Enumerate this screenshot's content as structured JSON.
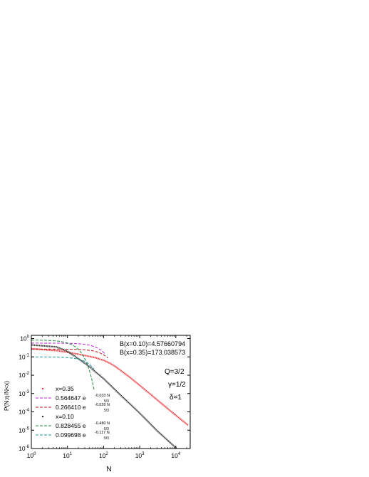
{
  "chart_data": {
    "type": "line",
    "xscale": "log",
    "yscale": "log",
    "xlim": [
      1,
      25000
    ],
    "ylim": [
      1e-06,
      1.5
    ],
    "xlabel": "N",
    "ylabel": "P(N;η/N<x)",
    "xticks": [
      {
        "value": 1,
        "base": "10",
        "exp": "0"
      },
      {
        "value": 10,
        "base": "10",
        "exp": "1"
      },
      {
        "value": 100,
        "base": "10",
        "exp": "2"
      },
      {
        "value": 1000,
        "base": "10",
        "exp": "3"
      },
      {
        "value": 10000,
        "base": "10",
        "exp": "4"
      }
    ],
    "yticks": [
      {
        "value": 1,
        "base": "10",
        "exp": "0"
      },
      {
        "value": 0.1,
        "base": "10",
        "exp": "-1"
      },
      {
        "value": 0.01,
        "base": "10",
        "exp": "-2"
      },
      {
        "value": 0.001,
        "base": "10",
        "exp": "-3"
      },
      {
        "value": 0.0001,
        "base": "10",
        "exp": "-4"
      },
      {
        "value": 1e-05,
        "base": "10",
        "exp": "-5"
      },
      {
        "value": 1e-06,
        "base": "10",
        "exp": "-6"
      }
    ],
    "annotations": {
      "b1": "B(x=0.10)=4.57660794",
      "b2": "B(x=0.35)=173.038573",
      "q": "Q=3/2",
      "gamma": "γ=1/2",
      "delta": "δ=1"
    },
    "legend": {
      "placement": "bottom-left",
      "entries": [
        {
          "kind": "data",
          "text": "x=0.35",
          "color": "#e8161b"
        },
        {
          "kind": "fit",
          "coef": "0.564647",
          "exp": "-0.033 N",
          "sub": "5/3",
          "color": "#c026d3"
        },
        {
          "kind": "fit",
          "coef": "0.266410",
          "exp": "-0.020 N",
          "sub": "5/3",
          "color": "#c0161b"
        },
        {
          "kind": "data",
          "text": "x=0.10",
          "color": "#111111"
        },
        {
          "kind": "fit",
          "coef": "0.828455",
          "exp": "-0.480 N",
          "sub": "5/3",
          "color": "#1e8b3a"
        },
        {
          "kind": "fit",
          "coef": "0.099698",
          "exp": "-0.117 N",
          "sub": "5/3",
          "color": "#1a9a9a"
        }
      ]
    },
    "series": [
      {
        "kind": "data",
        "color": "#e8161b",
        "x": [
          1,
          5,
          10,
          30,
          60,
          100,
          150,
          200,
          300,
          500,
          1000,
          2000,
          5000,
          10000,
          22000
        ],
        "y": [
          0.28,
          0.22,
          0.18,
          0.12,
          0.09,
          0.065,
          0.045,
          0.032,
          0.018,
          0.0085,
          0.0028,
          0.0009,
          0.0002,
          6.5e-05,
          1.85e-05
        ]
      },
      {
        "kind": "data",
        "color": "#111111",
        "x": [
          1,
          5,
          10,
          20,
          40,
          60,
          100,
          300,
          1000,
          3000,
          10000,
          22000
        ],
        "y": [
          0.45,
          0.35,
          0.2,
          0.08,
          0.03,
          0.015,
          0.0065,
          0.0008,
          8.5e-05,
          9.5e-06,
          1.1e-06,
          2.2e-07
        ]
      },
      {
        "kind": "fit",
        "name": "0.564647",
        "color": "#c026d3",
        "coef": 0.564647,
        "rate": 0.033,
        "power": 1.6667,
        "xrange": [
          1,
          110
        ]
      },
      {
        "kind": "fit",
        "name": "0.266410",
        "color": "#c0161b",
        "coef": 0.26641,
        "rate": 0.02,
        "power": 1.6667,
        "xrange": [
          1,
          130
        ]
      },
      {
        "kind": "fit",
        "name": "0.828455",
        "color": "#1e8b3a",
        "coef": 0.828455,
        "rate": 0.48,
        "power": 1.6667,
        "xrange": [
          1,
          55
        ]
      },
      {
        "kind": "fit",
        "name": "0.099698",
        "color": "#1a9a9a",
        "coef": 0.099698,
        "rate": 0.117,
        "power": 1.6667,
        "xrange": [
          1,
          55
        ]
      }
    ]
  }
}
